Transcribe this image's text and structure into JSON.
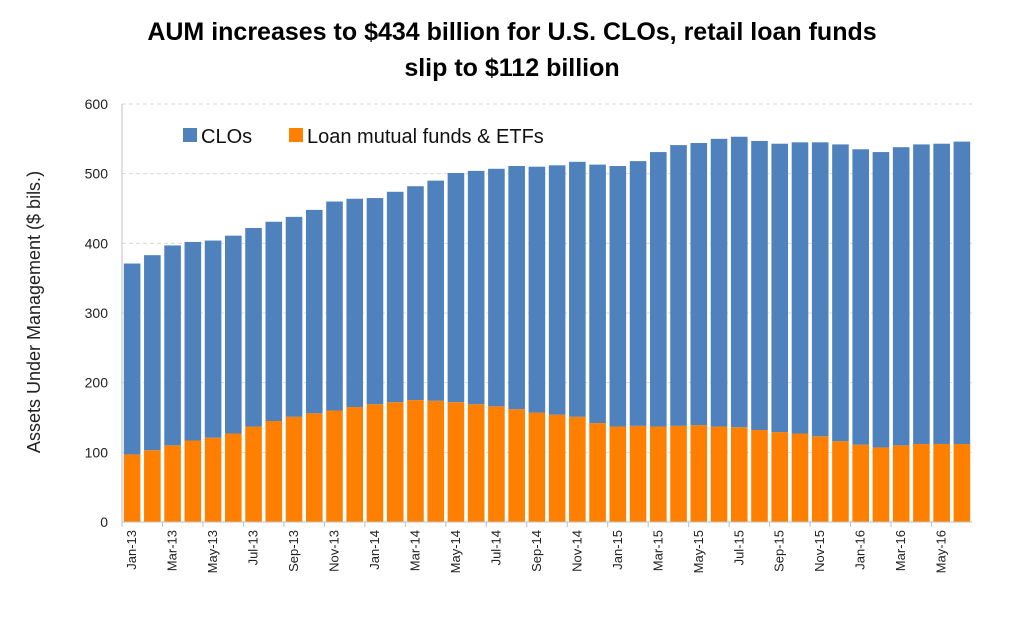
{
  "chart_data": {
    "type": "bar",
    "stacked": true,
    "title_line1": "AUM increases to $434 billion for U.S. CLOs, retail loan funds",
    "title_line2": "slip to $112 billion",
    "xlabel": "",
    "ylabel": "Assets Under Management ($ bils.)",
    "ylim": [
      0,
      600
    ],
    "yticks": [
      0,
      100,
      200,
      300,
      400,
      500,
      600
    ],
    "grid": true,
    "legend_position": "top-left",
    "categories": [
      "Jan-13",
      "Feb-13",
      "Mar-13",
      "Apr-13",
      "May-13",
      "Jun-13",
      "Jul-13",
      "Aug-13",
      "Sep-13",
      "Oct-13",
      "Nov-13",
      "Dec-13",
      "Jan-14",
      "Feb-14",
      "Mar-14",
      "Apr-14",
      "May-14",
      "Jun-14",
      "Jul-14",
      "Aug-14",
      "Sep-14",
      "Oct-14",
      "Nov-14",
      "Dec-14",
      "Jan-15",
      "Feb-15",
      "Mar-15",
      "Apr-15",
      "May-15",
      "Jun-15",
      "Jul-15",
      "Aug-15",
      "Sep-15",
      "Oct-15",
      "Nov-15",
      "Dec-15",
      "Jan-16",
      "Feb-16",
      "Mar-16",
      "Apr-16",
      "May-16",
      "Jun-16"
    ],
    "tick_labels": [
      "Jan-13",
      "",
      "Mar-13",
      "",
      "May-13",
      "",
      "Jul-13",
      "",
      "Sep-13",
      "",
      "Nov-13",
      "",
      "Jan-14",
      "",
      "Mar-14",
      "",
      "May-14",
      "",
      "Jul-14",
      "",
      "Sep-14",
      "",
      "Nov-14",
      "",
      "Jan-15",
      "",
      "Mar-15",
      "",
      "May-15",
      "",
      "Jul-15",
      "",
      "Sep-15",
      "",
      "Nov-15",
      "",
      "Jan-16",
      "",
      "Mar-16",
      "",
      "May-16",
      ""
    ],
    "series": [
      {
        "name": "Loan mutual funds & ETFs",
        "color": "#ff8000",
        "values": [
          97,
          103,
          110,
          117,
          121,
          127,
          137,
          145,
          151,
          156,
          160,
          165,
          169,
          172,
          175,
          174,
          172,
          169,
          166,
          162,
          157,
          154,
          151,
          142,
          137,
          138,
          137,
          138,
          139,
          137,
          136,
          132,
          129,
          127,
          123,
          116,
          111,
          107,
          110,
          112,
          112,
          112
        ]
      },
      {
        "name": "CLOs",
        "color": "#4f81bd",
        "values": [
          274,
          280,
          287,
          285,
          283,
          284,
          285,
          286,
          287,
          292,
          300,
          299,
          296,
          302,
          307,
          316,
          329,
          335,
          341,
          349,
          353,
          358,
          366,
          371,
          374,
          380,
          394,
          403,
          405,
          413,
          417,
          415,
          414,
          418,
          422,
          426,
          424,
          424,
          428,
          430,
          431,
          434
        ]
      }
    ],
    "legend": [
      "CLOs",
      "Loan mutual funds & ETFs"
    ]
  }
}
